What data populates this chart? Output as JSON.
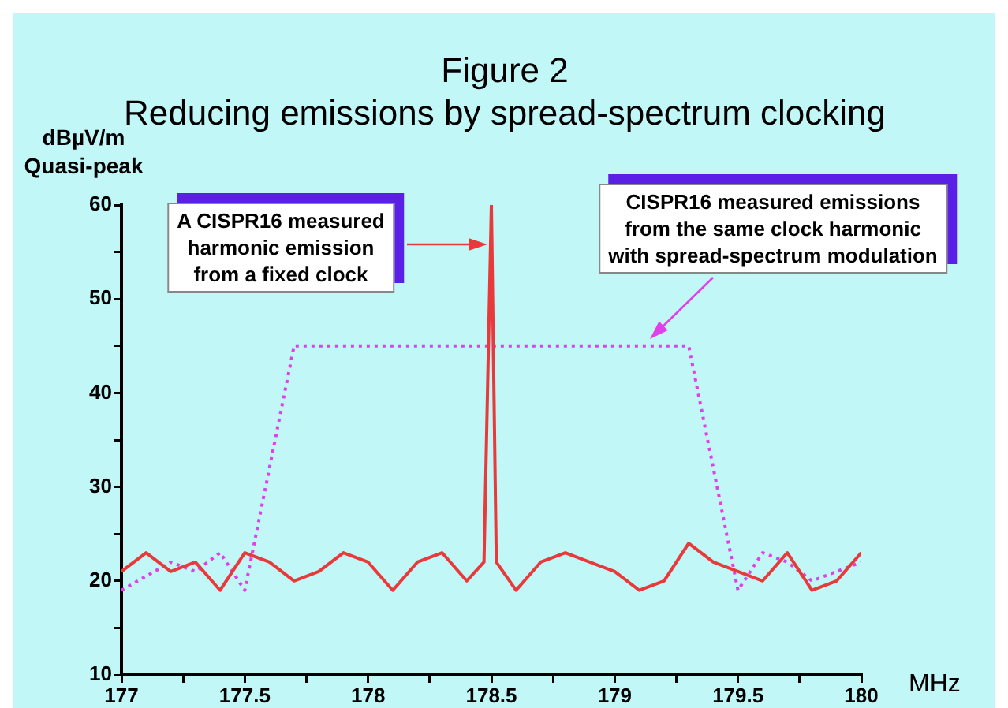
{
  "chart_data": {
    "type": "line",
    "title": "Figure 2\nReducing emissions by spread-spectrum clocking",
    "ylabel": "dBµV/m\nQuasi-peak",
    "xlabel": "MHz",
    "xlim": [
      177,
      180
    ],
    "xticks": [
      177,
      {
        "value": 177.25,
        "label": null
      },
      177.5,
      {
        "value": 177.75,
        "label": null
      },
      178,
      {
        "value": 178.25,
        "label": null
      },
      178.5,
      {
        "value": 178.75,
        "label": null
      },
      179,
      {
        "value": 179.25,
        "label": null
      },
      179.5,
      {
        "value": 179.75,
        "label": null
      },
      180
    ],
    "ylim": [
      10,
      60
    ],
    "yticks": [
      10,
      {
        "value": 15,
        "label": null
      },
      20,
      {
        "value": 25,
        "label": null
      },
      30,
      {
        "value": 35,
        "label": null
      },
      40,
      {
        "value": 45,
        "label": null
      },
      50,
      {
        "value": 55,
        "label": null
      },
      60
    ],
    "grid": false,
    "legend": false,
    "marker": "none",
    "series": [
      {
        "color": "#e83a3a",
        "line_style": "solid",
        "x": [
          177.0,
          177.1,
          177.2,
          177.3,
          177.4,
          177.5,
          177.6,
          177.7,
          177.8,
          177.9,
          178.0,
          178.1,
          178.2,
          178.3,
          178.4,
          178.47,
          178.5,
          178.52,
          178.6,
          178.7,
          178.8,
          179.0,
          179.1,
          179.2,
          179.3,
          179.4,
          179.5,
          179.6,
          179.7,
          179.8,
          179.9,
          180.0
        ],
        "values": [
          21,
          23,
          21,
          22,
          19,
          23,
          22,
          20,
          21,
          23,
          22,
          19,
          22,
          23,
          20,
          22,
          60,
          22,
          19,
          22,
          23,
          21,
          19,
          20,
          24,
          22,
          21,
          20,
          23,
          19,
          20,
          23
        ]
      },
      {
        "color": "#e040e8",
        "line_style": "dotted",
        "x": [
          177.0,
          177.2,
          177.3,
          177.4,
          177.5,
          177.7,
          179.3,
          179.5,
          179.6,
          179.7,
          179.8,
          180.0
        ],
        "values": [
          19,
          22,
          21,
          23,
          19,
          45,
          45,
          19,
          23,
          22,
          20,
          22
        ]
      }
    ],
    "annotations": [
      "A CISPR16 measured\nharmonic emission\nfrom a fixed clock",
      "CISPR16 measured emissions\nfrom the same clock harmonic\nwith spread-spectrum modulation"
    ]
  }
}
